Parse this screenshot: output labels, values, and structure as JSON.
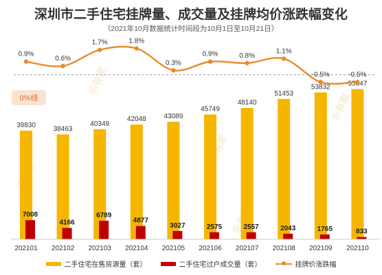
{
  "title": "深圳市二手住宅挂牌量、成交量及挂牌均价涨跌幅变化",
  "subtitle": "（2021年10月数据统计时间段为10月1日至10月21日）",
  "zero_line_label": "0%线",
  "watermark": "乐有家",
  "colors": {
    "listing_bar": "#F6B600",
    "transaction_bar": "#C00000",
    "price_line": "#E98A2A",
    "zero_label_bg": "#FBE3CF",
    "zero_label_text": "#E0712C"
  },
  "legend": [
    {
      "label": "二手住宅在售房源量（套）",
      "kind": "bar",
      "color": "#F6B600"
    },
    {
      "label": "二手住宅过户成交量（套）",
      "kind": "bar",
      "color": "#C00000"
    },
    {
      "label": "挂牌价涨跌幅",
      "kind": "line",
      "color": "#E98A2A"
    }
  ],
  "chart_data": {
    "type": "bar",
    "title": "深圳市二手住宅挂牌量、成交量及挂牌均价涨跌幅变化",
    "subtitle": "（2021年10月数据统计时间段为10月1日至10月21日）",
    "categories": [
      "202101",
      "202102",
      "202103",
      "202104",
      "202105",
      "202106",
      "202107",
      "202108",
      "202109",
      "202110"
    ],
    "series": [
      {
        "name": "二手住宅在售房源量（套）",
        "type": "bar",
        "values": [
          39830,
          38463,
          40349,
          42048,
          43089,
          45749,
          48140,
          51453,
          53832,
          55047
        ],
        "labels": [
          "39830",
          "38463",
          "40349",
          "42048",
          "43089",
          "45749",
          "48140",
          "51453",
          "53832",
          "55047"
        ]
      },
      {
        "name": "二手住宅过户成交量（套）",
        "type": "bar",
        "values": [
          7008,
          4166,
          6789,
          4877,
          3027,
          2575,
          2557,
          2043,
          1765,
          833
        ],
        "labels": [
          "7008",
          "4166",
          "6789",
          "4877",
          "3027",
          "2575",
          "2557",
          "2043",
          "1765",
          "833"
        ]
      },
      {
        "name": "挂牌价涨跌幅",
        "type": "line",
        "values": [
          0.9,
          0.6,
          1.7,
          1.8,
          0.3,
          0.9,
          0.8,
          1.1,
          -0.5,
          -0.5
        ],
        "labels": [
          "0.9%",
          "0.6%",
          "1.7%",
          "1.8%",
          "0.3%",
          "0.9%",
          "0.8%",
          "1.1%",
          "-0.5%",
          "-0.5%"
        ]
      }
    ],
    "bar_axis_range": [
      0,
      62000
    ],
    "line_axis_range": [
      -1.0,
      2.2
    ],
    "line_style": "smooth",
    "reference_line": {
      "value": 0,
      "style": "dashed"
    },
    "grid": false,
    "legend_position": "bottom"
  }
}
